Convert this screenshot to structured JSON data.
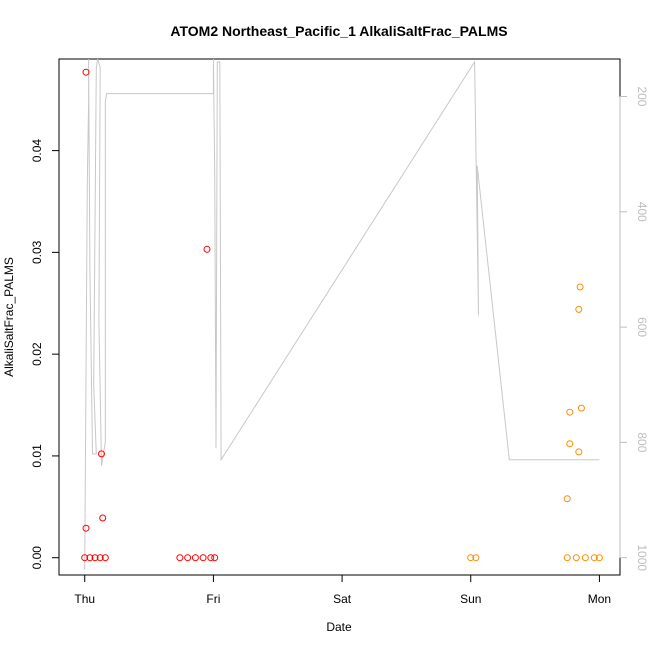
{
  "chart_data": {
    "type": "scatter",
    "title": "ATOM2 Northeast_Pacific_1 AlkaliSaltFrac_PALMS",
    "xlabel": "Date",
    "ylabel": "AlkaliSaltFrac_PALMS",
    "x_ticks": [
      "Thu",
      "Fri",
      "Sat",
      "Sun",
      "Mon"
    ],
    "x_tick_values": [
      0,
      1,
      2,
      3,
      4
    ],
    "xlim": [
      -0.2,
      4.16
    ],
    "ylim": [
      -0.0017,
      0.049
    ],
    "y_ticks": [
      "0.00",
      "0.01",
      "0.02",
      "0.03",
      "0.04"
    ],
    "y_tick_values": [
      0,
      0.01,
      0.02,
      0.03,
      0.04
    ],
    "y2_ticks": [
      "200",
      "400",
      "600",
      "800",
      "1000"
    ],
    "y2_tick_values": [
      200,
      400,
      600,
      800,
      1000
    ],
    "y2lim": [
      1030,
      135
    ],
    "grid": false,
    "legend": "none",
    "colors": {
      "leg1": "#ff0000",
      "leg2": "#ff8c00",
      "pressure": "#c8c8c8",
      "axis": "#000000",
      "axis2": "#bdbdbd"
    },
    "series": [
      {
        "values": [
          [
            0.01,
            0.0477
          ],
          [
            0.01,
            0.0029
          ],
          [
            0.13,
            0.0102
          ],
          [
            0.14,
            0.0039
          ],
          [
            0.95,
            0.0303
          ],
          [
            0.0,
            0.0
          ],
          [
            0.04,
            0.0
          ],
          [
            0.08,
            0.0
          ],
          [
            0.12,
            0.0
          ],
          [
            0.16,
            0.0
          ],
          [
            0.74,
            0.0
          ],
          [
            0.8,
            0.0
          ],
          [
            0.86,
            0.0
          ],
          [
            0.92,
            0.0
          ],
          [
            0.98,
            0.0
          ],
          [
            1.01,
            0.0
          ]
        ]
      },
      {
        "values": [
          [
            3.75,
            0.0058
          ],
          [
            3.77,
            0.0112
          ],
          [
            3.77,
            0.0143
          ],
          [
            3.84,
            0.0244
          ],
          [
            3.84,
            0.0104
          ],
          [
            3.85,
            0.0266
          ],
          [
            3.86,
            0.0147
          ],
          [
            3.0,
            0.0
          ],
          [
            3.04,
            0.0
          ],
          [
            3.75,
            0.0
          ],
          [
            3.82,
            0.0
          ],
          [
            3.89,
            0.0
          ],
          [
            3.96,
            0.0
          ],
          [
            4.0,
            0.0
          ]
        ]
      },
      {
        "axis": "y2",
        "values": [
          [
            0.0,
            1020
          ],
          [
            0.02,
            350
          ],
          [
            0.03,
            210
          ],
          [
            0.03,
            135
          ],
          [
            0.04,
            500
          ],
          [
            0.06,
            820
          ],
          [
            0.09,
            820
          ],
          [
            0.07,
            700
          ],
          [
            0.09,
            150
          ],
          [
            0.1,
            135
          ],
          [
            0.12,
            150
          ],
          [
            0.11,
            590
          ],
          [
            0.13,
            840
          ],
          [
            0.16,
            800
          ],
          [
            0.16,
            210
          ],
          [
            0.17,
            195
          ],
          [
            1.0,
            195
          ],
          [
            1.0,
            135
          ],
          [
            1.01,
            330
          ],
          [
            1.02,
            810
          ],
          [
            1.03,
            140
          ],
          [
            1.05,
            140
          ],
          [
            1.06,
            830
          ],
          [
            3.03,
            140
          ],
          [
            3.06,
            580
          ],
          [
            3.05,
            320
          ],
          [
            3.3,
            830
          ],
          [
            4.0,
            830
          ]
        ]
      }
    ]
  }
}
